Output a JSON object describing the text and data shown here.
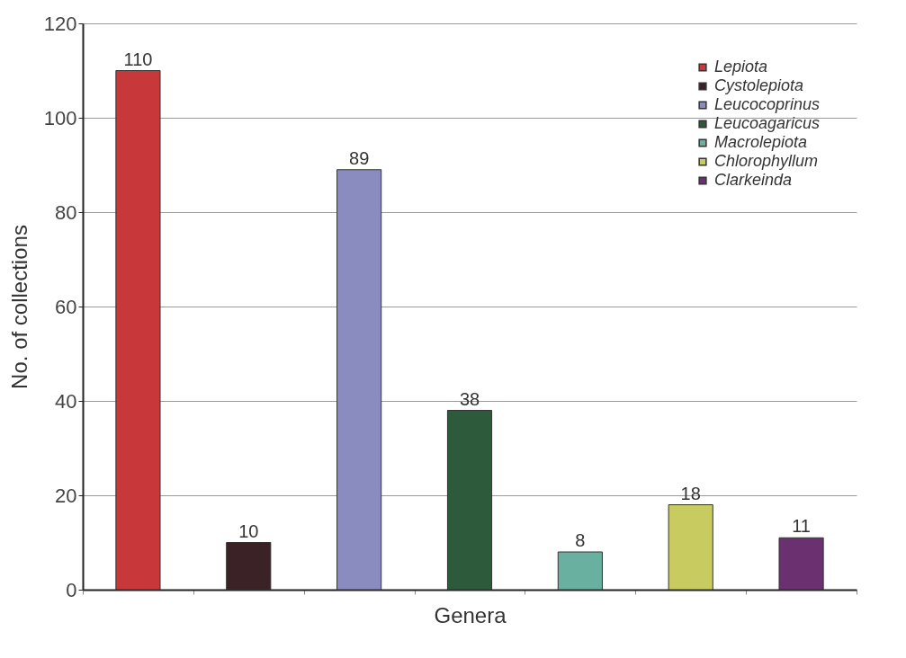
{
  "chart_data": {
    "type": "bar",
    "xlabel": "Genera",
    "ylabel": "No. of collections",
    "categories": [
      null,
      null,
      null,
      null,
      null,
      null,
      null
    ],
    "series": [
      {
        "name": "Lepiota",
        "color": "#c8383a",
        "values": [
          110,
          null,
          null,
          null,
          null,
          null,
          null
        ]
      },
      {
        "name": "Cystolepiota",
        "color": "#3a2226",
        "values": [
          null,
          10,
          null,
          null,
          null,
          null,
          null
        ]
      },
      {
        "name": "Leucocoprinus",
        "color": "#8a8cc0",
        "values": [
          null,
          null,
          89,
          null,
          null,
          null,
          null
        ]
      },
      {
        "name": "Leucoagaricus",
        "color": "#2e5a3c",
        "values": [
          null,
          null,
          null,
          38,
          null,
          null,
          null
        ]
      },
      {
        "name": "Macrolepiota",
        "color": "#6ab0a0",
        "values": [
          null,
          null,
          null,
          null,
          8,
          null,
          null
        ]
      },
      {
        "name": "Chlorophyllum",
        "color": "#c8cc60",
        "values": [
          null,
          null,
          null,
          null,
          null,
          18,
          null
        ]
      },
      {
        "name": "Clarkeinda",
        "color": "#6a3070",
        "values": [
          null,
          null,
          null,
          null,
          null,
          null,
          11
        ]
      }
    ],
    "ylim": [
      0,
      120
    ],
    "yticks": [
      0,
      20,
      40,
      60,
      80,
      100,
      120
    ],
    "grid": "y",
    "legend": "top right",
    "data_labels": true,
    "tick_labels": "y"
  }
}
